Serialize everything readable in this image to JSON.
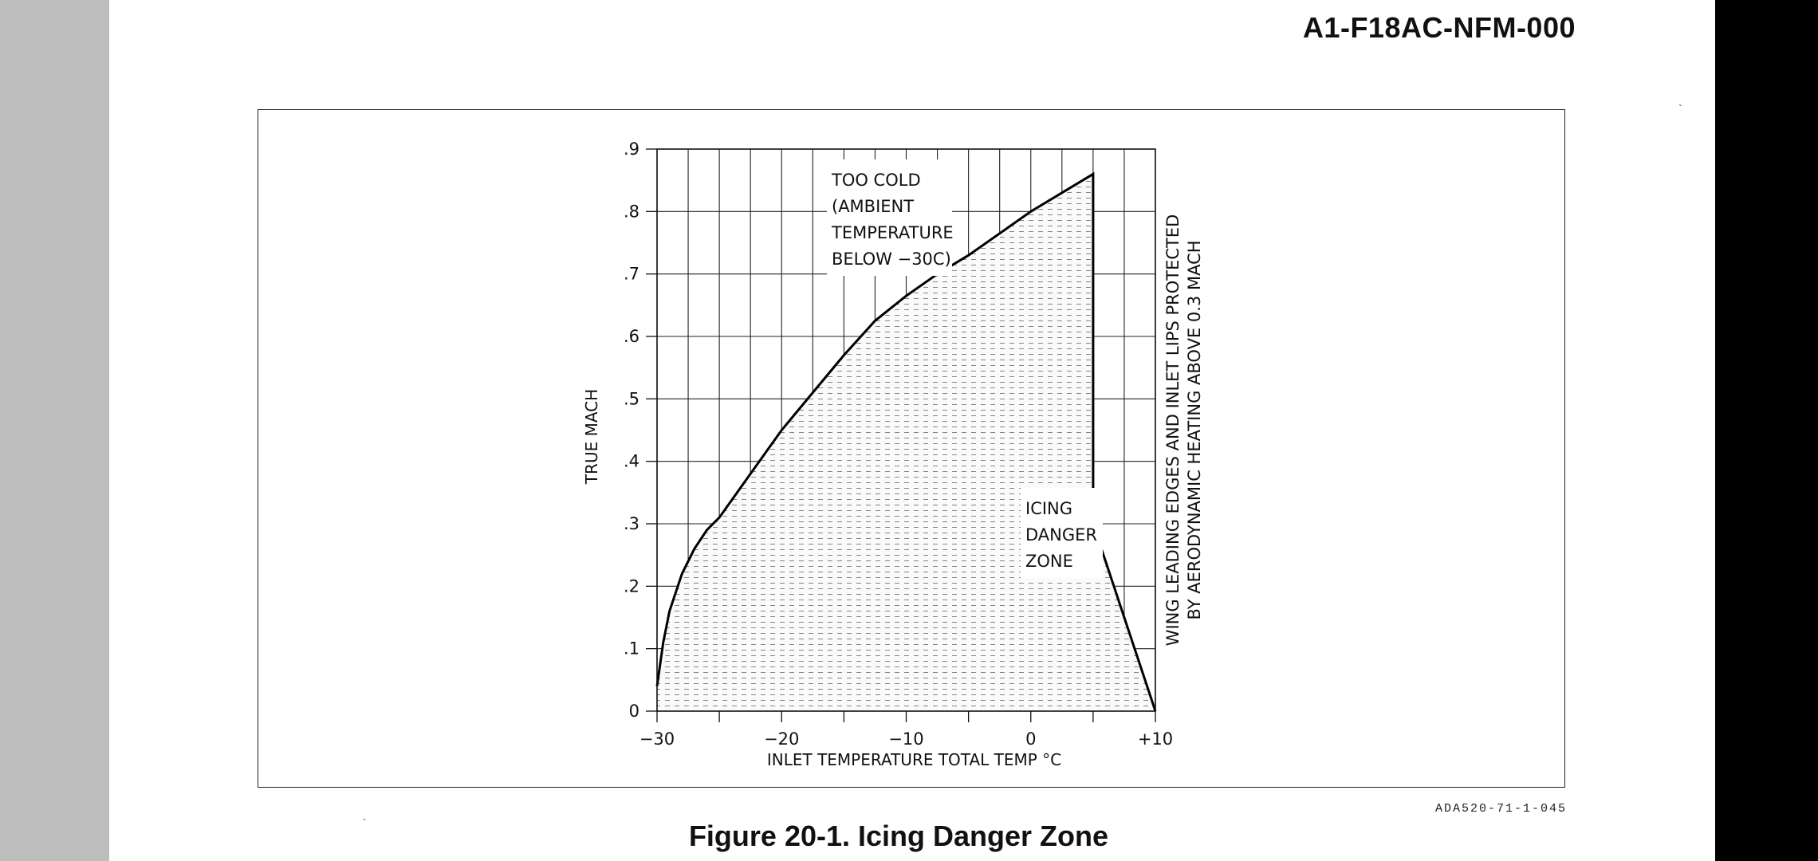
{
  "doc_id": "A1-F18AC-NFM-000",
  "figure_code": "ADA520-71-1-045",
  "caption": "Figure 20-1. Icing Danger Zone",
  "chart_data": {
    "type": "area",
    "title": "",
    "xlabel": "INLET TEMPERATURE TOTAL TEMP °C",
    "ylabel": "TRUE MACH",
    "xlim": [
      -30,
      10
    ],
    "ylim": [
      0,
      0.9
    ],
    "x_ticks": [
      {
        "value": -30,
        "label": "−30"
      },
      {
        "value": -20,
        "label": "−20"
      },
      {
        "value": -10,
        "label": "−10"
      },
      {
        "value": 0,
        "label": "0"
      },
      {
        "value": 10,
        "label": "+10"
      }
    ],
    "y_ticks": [
      {
        "value": 0,
        "label": "0"
      },
      {
        "value": 0.1,
        "label": ".1"
      },
      {
        "value": 0.2,
        "label": ".2"
      },
      {
        "value": 0.3,
        "label": ".3"
      },
      {
        "value": 0.4,
        "label": ".4"
      },
      {
        "value": 0.5,
        "label": ".5"
      },
      {
        "value": 0.6,
        "label": ".6"
      },
      {
        "value": 0.7,
        "label": ".7"
      },
      {
        "value": 0.8,
        "label": ".8"
      },
      {
        "value": 0.9,
        "label": ".9"
      }
    ],
    "grid": true,
    "series": [
      {
        "name": "ICING DANGER ZONE",
        "points": [
          [
            -30,
            0.04
          ],
          [
            -29.5,
            0.11
          ],
          [
            -29,
            0.16
          ],
          [
            -28,
            0.22
          ],
          [
            -27,
            0.26
          ],
          [
            -26,
            0.29
          ],
          [
            -25,
            0.31
          ],
          [
            -22.5,
            0.38
          ],
          [
            -20,
            0.45
          ],
          [
            -17.5,
            0.51
          ],
          [
            -15,
            0.57
          ],
          [
            -12.5,
            0.625
          ],
          [
            -10,
            0.665
          ],
          [
            -7.5,
            0.7
          ],
          [
            -5,
            0.73
          ],
          [
            -2.5,
            0.765
          ],
          [
            0,
            0.8
          ],
          [
            2.5,
            0.83
          ],
          [
            5,
            0.86
          ],
          [
            5,
            0.3
          ],
          [
            10,
            0.0
          ],
          [
            -30,
            0.0
          ]
        ]
      }
    ],
    "annotations": {
      "too_cold": [
        "TOO COLD",
        "(AMBIENT",
        "TEMPERATURE",
        "BELOW −30C)"
      ],
      "icing_zone": [
        "ICING",
        "DANGER",
        "ZONE"
      ],
      "right_note": [
        "WING LEADING EDGES AND INLET LIPS PROTECTED",
        "BY AERODYNAMIC HEATING ABOVE 0.3 MACH"
      ]
    }
  }
}
